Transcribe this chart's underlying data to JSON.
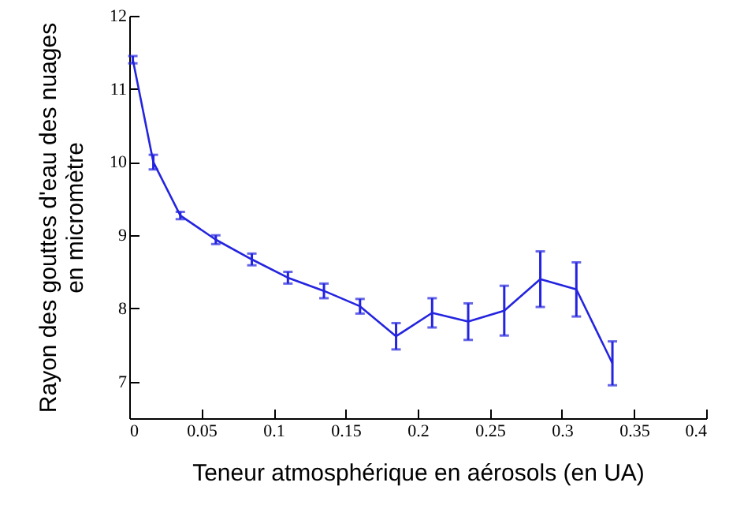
{
  "chart_data": {
    "type": "line",
    "xlabel": "Teneur atmosphérique en aérosols (en UA)",
    "ylabel": "Rayon des gouttes d'eau des nuages\nen micromètre",
    "x": [
      0.0025,
      0.0167,
      0.0354,
      0.06,
      0.085,
      0.11,
      0.135,
      0.16,
      0.185,
      0.21,
      0.235,
      0.26,
      0.285,
      0.31,
      0.335
    ],
    "series": [
      {
        "color": "#2424e0",
        "values": [
          11.4,
          10.0,
          9.27,
          8.94,
          8.67,
          8.42,
          8.24,
          8.03,
          7.62,
          7.94,
          7.82,
          7.97,
          8.4,
          8.26,
          7.25
        ],
        "errors": [
          0.05,
          0.1,
          0.05,
          0.06,
          0.08,
          0.08,
          0.1,
          0.1,
          0.18,
          0.2,
          0.25,
          0.34,
          0.38,
          0.37,
          0.3
        ]
      }
    ],
    "xlim": [
      0,
      0.4
    ],
    "xticks": [
      0,
      0.05,
      0.1,
      0.15,
      0.2,
      0.25,
      0.3,
      0.35,
      0.4
    ],
    "ylim": [
      6.5,
      12
    ],
    "yticks": [
      7,
      8,
      9,
      10,
      11,
      12
    ],
    "grid": false,
    "marker": "none",
    "line_style": "solid"
  }
}
